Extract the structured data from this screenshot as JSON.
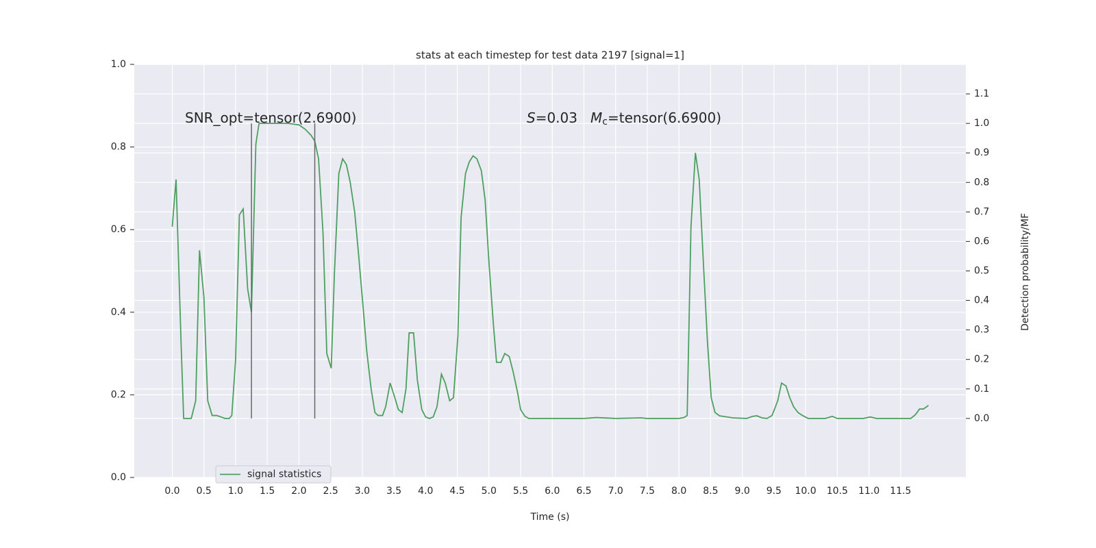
{
  "chart_data": {
    "type": "line",
    "title": "stats at each timestep for test data 2197 [signal=1]",
    "x_label": "Time (s)",
    "y2_label": "Detection probability/MF",
    "background": "#eaeaf2",
    "grid": true,
    "legend": "lower left",
    "xlim": [
      -0.6,
      12.53
    ],
    "ylim": [
      0,
      1
    ],
    "y2lim": [
      -0.2,
      1.2
    ],
    "xticks": [
      {
        "value": 0,
        "label": "0.0"
      },
      0.5,
      {
        "value": 1,
        "label": "1.0"
      },
      1.5,
      {
        "value": 2,
        "label": "2.0"
      },
      2.5,
      {
        "value": 3,
        "label": "3.0"
      },
      3.5,
      {
        "value": 4,
        "label": "4.0"
      },
      4.5,
      {
        "value": 5,
        "label": "5.0"
      },
      5.5,
      {
        "value": 6,
        "label": "6.0"
      },
      6.5,
      {
        "value": 7,
        "label": "7.0"
      },
      7.5,
      {
        "value": 8,
        "label": "8.0"
      },
      8.5,
      {
        "value": 9,
        "label": "9.0"
      },
      9.5,
      {
        "value": 10,
        "label": "10.0"
      },
      10.5,
      {
        "value": 11,
        "label": "11.0"
      },
      11.5
    ],
    "yticks": [
      {
        "value": 0,
        "label": "0.0"
      },
      0.2,
      0.4,
      0.6,
      0.8,
      {
        "value": 1,
        "label": "1.0"
      }
    ],
    "y2ticks": [
      {
        "value": 0,
        "label": "0.0"
      },
      0.1,
      0.2,
      0.3,
      0.4,
      0.5,
      0.6,
      0.7,
      0.8,
      0.9,
      {
        "value": 1,
        "label": "1.0"
      },
      1.1
    ],
    "x": [
      0,
      0.06,
      0.14,
      0.18,
      0.3,
      0.37,
      0.43,
      0.5,
      0.56,
      0.63,
      0.7,
      0.77,
      0.83,
      0.9,
      0.94,
      1.0,
      1.06,
      1.12,
      1.19,
      1.25,
      1.32,
      1.37,
      1.5,
      1.83,
      2.0,
      2.1,
      2.19,
      2.25,
      2.31,
      2.38,
      2.44,
      2.51,
      2.56,
      2.63,
      2.69,
      2.75,
      2.81,
      2.88,
      2.94,
      3.02,
      3.07,
      3.14,
      3.2,
      3.25,
      3.32,
      3.37,
      3.44,
      3.5,
      3.57,
      3.63,
      3.69,
      3.74,
      3.81,
      3.87,
      3.94,
      4.0,
      4.06,
      4.12,
      4.18,
      4.25,
      4.31,
      4.38,
      4.44,
      4.51,
      4.56,
      4.63,
      4.69,
      4.75,
      4.81,
      4.88,
      4.94,
      5.0,
      5.07,
      5.12,
      5.19,
      5.25,
      5.32,
      5.38,
      5.45,
      5.5,
      5.57,
      5.63,
      6.0,
      6.5,
      6.7,
      7.0,
      7.4,
      7.5,
      8.0,
      8.08,
      8.13,
      8.19,
      8.26,
      8.32,
      8.39,
      8.45,
      8.51,
      8.57,
      8.64,
      8.7,
      8.85,
      9.07,
      9.16,
      9.23,
      9.31,
      9.39,
      9.47,
      9.56,
      9.62,
      9.69,
      9.75,
      9.81,
      9.88,
      9.95,
      10.04,
      10.31,
      10.42,
      10.5,
      10.91,
      11.02,
      11.12,
      11.66,
      11.73,
      11.8,
      11.86,
      11.94
    ],
    "series": [
      {
        "name": "signal statistics",
        "color": "#4c9f5e",
        "axis": "y2",
        "values": [
          0.65,
          0.81,
          0.25,
          0.0,
          0.0,
          0.06,
          0.57,
          0.41,
          0.06,
          0.01,
          0.01,
          0.005,
          0.0,
          0.0,
          0.01,
          0.2,
          0.69,
          0.71,
          0.44,
          0.36,
          0.93,
          1.0,
          1.0,
          1.0,
          0.995,
          0.98,
          0.96,
          0.94,
          0.88,
          0.63,
          0.22,
          0.17,
          0.49,
          0.83,
          0.88,
          0.86,
          0.8,
          0.7,
          0.56,
          0.36,
          0.23,
          0.1,
          0.02,
          0.01,
          0.01,
          0.04,
          0.12,
          0.08,
          0.03,
          0.02,
          0.1,
          0.29,
          0.29,
          0.13,
          0.03,
          0.005,
          0.0,
          0.005,
          0.04,
          0.15,
          0.12,
          0.06,
          0.07,
          0.28,
          0.68,
          0.83,
          0.87,
          0.89,
          0.88,
          0.84,
          0.74,
          0.53,
          0.32,
          0.19,
          0.19,
          0.22,
          0.21,
          0.16,
          0.09,
          0.03,
          0.007,
          0.0,
          0.0,
          0.0,
          0.003,
          0.0,
          0.002,
          0.0,
          0.0,
          0.003,
          0.01,
          0.65,
          0.9,
          0.81,
          0.51,
          0.26,
          0.07,
          0.02,
          0.009,
          0.007,
          0.002,
          0.0,
          0.007,
          0.009,
          0.002,
          0.0,
          0.01,
          0.06,
          0.12,
          0.11,
          0.07,
          0.04,
          0.02,
          0.01,
          0.0,
          0.0,
          0.007,
          0.0,
          0.0,
          0.005,
          0.0,
          0.0,
          0.012,
          0.032,
          0.032,
          0.044
        ]
      }
    ],
    "vlines": {
      "x": [
        1.25,
        2.25
      ],
      "y2_range": [
        0,
        1
      ],
      "color": "#666666"
    },
    "annotations": [
      [
        {
          "text": "SNR_opt=tensor(2.6900)"
        }
      ],
      [
        {
          "text": "S",
          "italic": true
        },
        {
          "text": "=0.03"
        }
      ],
      [
        {
          "text": "M",
          "italic": true
        },
        {
          "text": "c",
          "subscript": true
        },
        {
          "text": "=tensor(6.6900)"
        }
      ]
    ]
  }
}
